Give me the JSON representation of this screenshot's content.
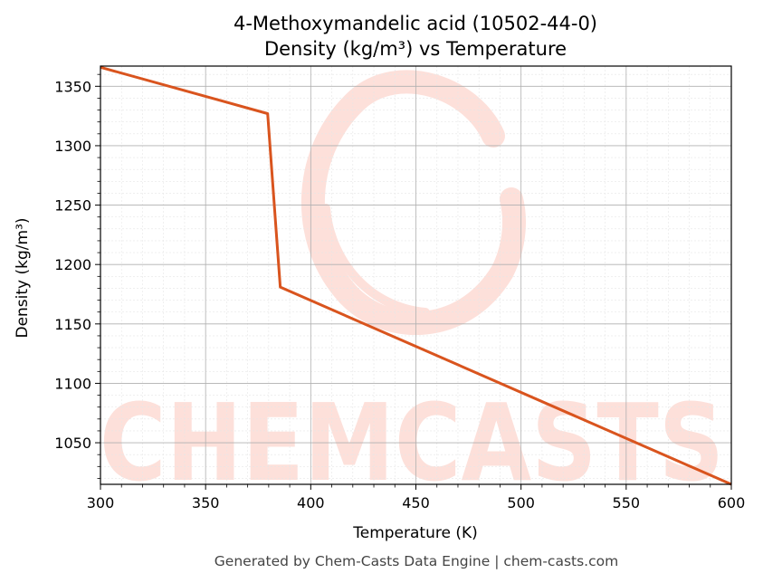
{
  "chart_data": {
    "type": "line",
    "title": "4-Methoxymandelic acid (10502-44-0)",
    "subtitle": "Density (kg/m³) vs Temperature",
    "xlabel": "Temperature (K)",
    "ylabel": "Density (kg/m³)",
    "xlim": [
      300,
      600
    ],
    "ylim": [
      1015,
      1367
    ],
    "xticks": [
      300,
      350,
      400,
      450,
      500,
      550,
      600
    ],
    "yticks": [
      1050,
      1100,
      1150,
      1200,
      1250,
      1300,
      1350
    ],
    "grid": true,
    "series": [
      {
        "color": "#d9541e",
        "x": [
          300,
          379.5,
          385.5,
          600
        ],
        "y": [
          1366,
          1327,
          1181,
          1015
        ]
      }
    ]
  },
  "watermark": {
    "text": "CHEMCASTS",
    "color": "#fde0da"
  },
  "footer": "Generated by Chem-Casts Data Engine | chem-casts.com"
}
